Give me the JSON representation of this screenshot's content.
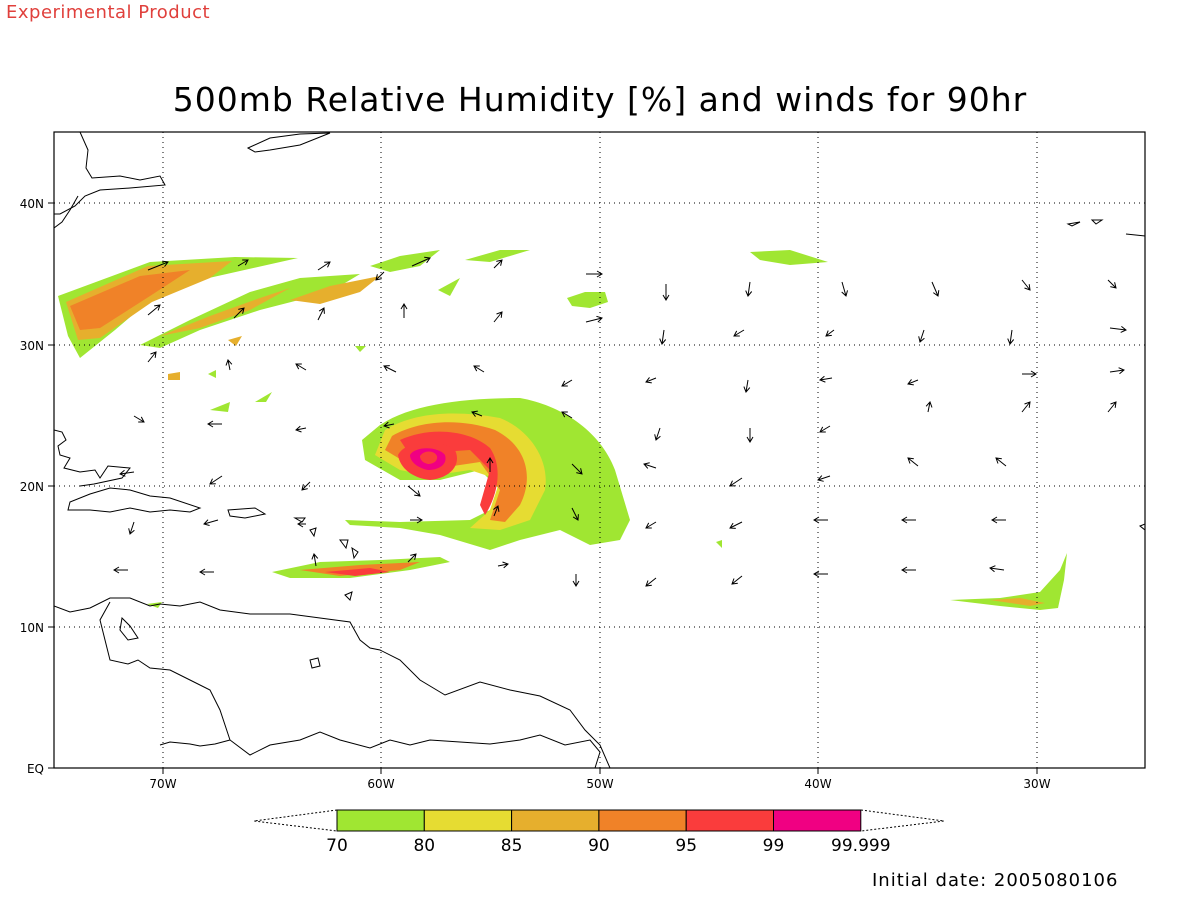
{
  "header": {
    "product_label": "Experimental Product",
    "title": "500mb Relative Humidity [%] and winds for 90hr"
  },
  "footer": {
    "initial_date": "Initial date: 2005080106"
  },
  "axes": {
    "lat_labels": [
      "40N",
      "30N",
      "20N",
      "10N",
      "EQ"
    ],
    "lon_labels": [
      "70W",
      "60W",
      "50W",
      "40W",
      "30W"
    ]
  },
  "colorbar": {
    "labels": [
      "70",
      "80",
      "85",
      "90",
      "95",
      "99",
      "99.999"
    ],
    "colors": [
      "#a0e632",
      "#e6dc32",
      "#e6af2d",
      "#f08228",
      "#fa3c3c",
      "#f00082"
    ]
  },
  "map_style": {
    "coast_color": "#000000",
    "grid": "dotted"
  }
}
